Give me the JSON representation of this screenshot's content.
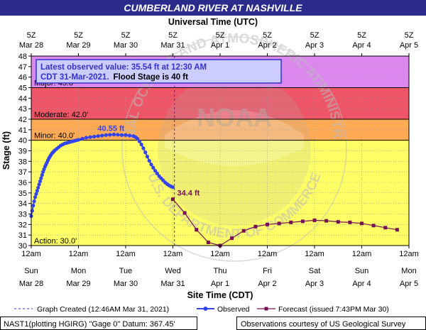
{
  "colors": {
    "header_bg": "#2b2b8c",
    "header_text": "#ffffff",
    "major": "#dd88ee",
    "moderate": "#ee5566",
    "minor": "#ffaa55",
    "action": "#ffff66",
    "below_action": "#ffffff",
    "observed": "#3344ee",
    "forecast": "#771155",
    "peak_label": "#3344ee",
    "last_obs_label": "#771155",
    "obs_box_bg": "#ccccff",
    "obs_box_border": "#3333cc",
    "obs_box_text": "#3333cc",
    "created_line": "#3333cc",
    "grid": "#999999",
    "watermark": "#c9c9c9"
  },
  "chart_data": {
    "type": "line",
    "title": "CUMBERLAND RIVER AT NASHVILLE",
    "top_axis_label": "Universal Time (UTC)",
    "xlabel": "Site Time (CDT)",
    "ylabel": "Stage (ft)",
    "ylim": [
      30,
      48
    ],
    "x_range_hours": [
      0,
      192
    ],
    "yticks": [
      30,
      31,
      32,
      33,
      34,
      35,
      36,
      37,
      38,
      39,
      40,
      41,
      42,
      43,
      44,
      45,
      46,
      47,
      48
    ],
    "top_ticks": [
      {
        "h": 0,
        "l1": "5Z",
        "l2": "Mar 28"
      },
      {
        "h": 24,
        "l1": "5Z",
        "l2": "Mar 29"
      },
      {
        "h": 48,
        "l1": "5Z",
        "l2": "Mar 30"
      },
      {
        "h": 72,
        "l1": "5Z",
        "l2": "Mar 31"
      },
      {
        "h": 96,
        "l1": "5Z",
        "l2": "Apr 1"
      },
      {
        "h": 120,
        "l1": "5Z",
        "l2": "Apr 2"
      },
      {
        "h": 144,
        "l1": "5Z",
        "l2": "Apr 3"
      },
      {
        "h": 168,
        "l1": "5Z",
        "l2": "Apr 4"
      },
      {
        "h": 192,
        "l1": "5Z",
        "l2": "Apr 5"
      }
    ],
    "bottom_ticks": [
      {
        "h": 0,
        "l1": "12am",
        "l2": "Sun",
        "l3": "Mar 28"
      },
      {
        "h": 24,
        "l1": "12am",
        "l2": "Mon",
        "l3": "Mar 29"
      },
      {
        "h": 48,
        "l1": "12am",
        "l2": "Tue",
        "l3": "Mar 30"
      },
      {
        "h": 72,
        "l1": "12am",
        "l2": "Wed",
        "l3": "Mar 31"
      },
      {
        "h": 96,
        "l1": "12am",
        "l2": "Thu",
        "l3": "Apr 1"
      },
      {
        "h": 120,
        "l1": "12am",
        "l2": "Fri",
        "l3": "Apr 2"
      },
      {
        "h": 144,
        "l1": "12am",
        "l2": "Sat",
        "l3": "Apr 3"
      },
      {
        "h": 168,
        "l1": "12am",
        "l2": "Sun",
        "l3": "Apr 4"
      },
      {
        "h": 192,
        "l1": "12am",
        "l2": "Mon",
        "l3": "Apr 5"
      }
    ],
    "flood_categories": [
      {
        "name": "major",
        "label": "Major: 45.0'",
        "from": 45,
        "to": 48
      },
      {
        "name": "moderate",
        "label": "Moderate: 42.0'",
        "from": 42,
        "to": 45
      },
      {
        "name": "minor",
        "label": "Minor: 40.0'",
        "from": 40,
        "to": 42
      },
      {
        "name": "action",
        "label": "Action: 30.0'",
        "from": 30,
        "to": 40
      }
    ],
    "observed": {
      "name": "Observed",
      "points": [
        [
          0,
          32.8
        ],
        [
          0.5,
          33.3
        ],
        [
          1,
          33.8
        ],
        [
          1.5,
          34.2
        ],
        [
          2,
          34.6
        ],
        [
          2.5,
          34.9
        ],
        [
          3,
          35.2
        ],
        [
          3.5,
          35.5
        ],
        [
          4,
          35.8
        ],
        [
          4.5,
          36.1
        ],
        [
          5,
          36.4
        ],
        [
          5.5,
          36.7
        ],
        [
          6,
          37.0
        ],
        [
          6.5,
          37.25
        ],
        [
          7,
          37.5
        ],
        [
          7.5,
          37.7
        ],
        [
          8,
          37.9
        ],
        [
          8.5,
          38.1
        ],
        [
          9,
          38.3
        ],
        [
          9.5,
          38.45
        ],
        [
          10,
          38.6
        ],
        [
          10.5,
          38.75
        ],
        [
          11,
          38.85
        ],
        [
          11.5,
          38.95
        ],
        [
          12,
          39.05
        ],
        [
          13,
          39.2
        ],
        [
          14,
          39.35
        ],
        [
          15,
          39.5
        ],
        [
          16,
          39.6
        ],
        [
          17,
          39.7
        ],
        [
          18,
          39.75
        ],
        [
          19,
          39.8
        ],
        [
          20,
          39.85
        ],
        [
          21,
          39.9
        ],
        [
          22,
          39.95
        ],
        [
          23,
          40.0
        ],
        [
          24,
          40.05
        ],
        [
          26,
          40.15
        ],
        [
          28,
          40.25
        ],
        [
          30,
          40.3
        ],
        [
          32,
          40.35
        ],
        [
          34,
          40.4
        ],
        [
          36,
          40.45
        ],
        [
          38,
          40.5
        ],
        [
          40,
          40.52
        ],
        [
          42,
          40.55
        ],
        [
          44,
          40.53
        ],
        [
          46,
          40.5
        ],
        [
          48,
          40.5
        ],
        [
          50,
          40.45
        ],
        [
          52,
          40.4
        ],
        [
          53,
          40.3
        ],
        [
          54,
          40.15
        ],
        [
          55,
          39.9
        ],
        [
          56,
          39.6
        ],
        [
          57,
          39.25
        ],
        [
          58,
          38.85
        ],
        [
          59,
          38.45
        ],
        [
          60,
          38.05
        ],
        [
          61,
          37.7
        ],
        [
          62,
          37.4
        ],
        [
          63,
          37.1
        ],
        [
          64,
          36.85
        ],
        [
          65,
          36.6
        ],
        [
          66,
          36.4
        ],
        [
          67,
          36.2
        ],
        [
          68,
          36.0
        ],
        [
          69,
          35.85
        ],
        [
          70,
          35.72
        ],
        [
          71,
          35.62
        ],
        [
          72,
          35.54
        ]
      ]
    },
    "forecast": {
      "name": "Forecast (issued 7:43PM Mar 30)",
      "points": [
        [
          72,
          34.4
        ],
        [
          78,
          33.1
        ],
        [
          84,
          31.5
        ],
        [
          90,
          30.3
        ],
        [
          96,
          30.0
        ],
        [
          102,
          30.7
        ],
        [
          108,
          31.4
        ],
        [
          114,
          31.8
        ],
        [
          120,
          32.0
        ],
        [
          126,
          32.1
        ],
        [
          132,
          32.2
        ],
        [
          138,
          32.3
        ],
        [
          144,
          32.4
        ],
        [
          150,
          32.35
        ],
        [
          156,
          32.25
        ],
        [
          162,
          32.2
        ],
        [
          168,
          32.1
        ],
        [
          174,
          31.9
        ],
        [
          180,
          31.7
        ],
        [
          186,
          31.5
        ]
      ]
    },
    "peak_label": {
      "text": "40.55 ft",
      "h": 42,
      "v": 40.55
    },
    "last_obs_label": {
      "text": "34.4 ft",
      "h": 72,
      "v": 34.4
    },
    "graph_created_h": 72.8,
    "legend": [
      {
        "kind": "created",
        "label": "Graph Created (12:46AM Mar 31, 2021)"
      },
      {
        "kind": "observed",
        "label": "Observed"
      },
      {
        "kind": "forecast",
        "label": "Forecast (issued 7:43PM Mar 30)"
      }
    ],
    "info_box": {
      "line1": "Latest observed value: 35.54 ft at 12:30 AM",
      "line2a": "CDT 31-Mar-2021.",
      "line2b": "Flood Stage is 40 ft"
    },
    "footer_left": "NAST1(plotting HGIRG) \"Gage 0\" Datum: 367.45'",
    "footer_right": "Observations courtesy of US Geological Survey",
    "watermark": {
      "text_ring": "NATIONAL OCEANIC AND ATMOSPHERIC ADMINISTRATION",
      "text_bottom": "U.S. DEPARTMENT OF COMMERCE",
      "center": "NOAA"
    }
  }
}
